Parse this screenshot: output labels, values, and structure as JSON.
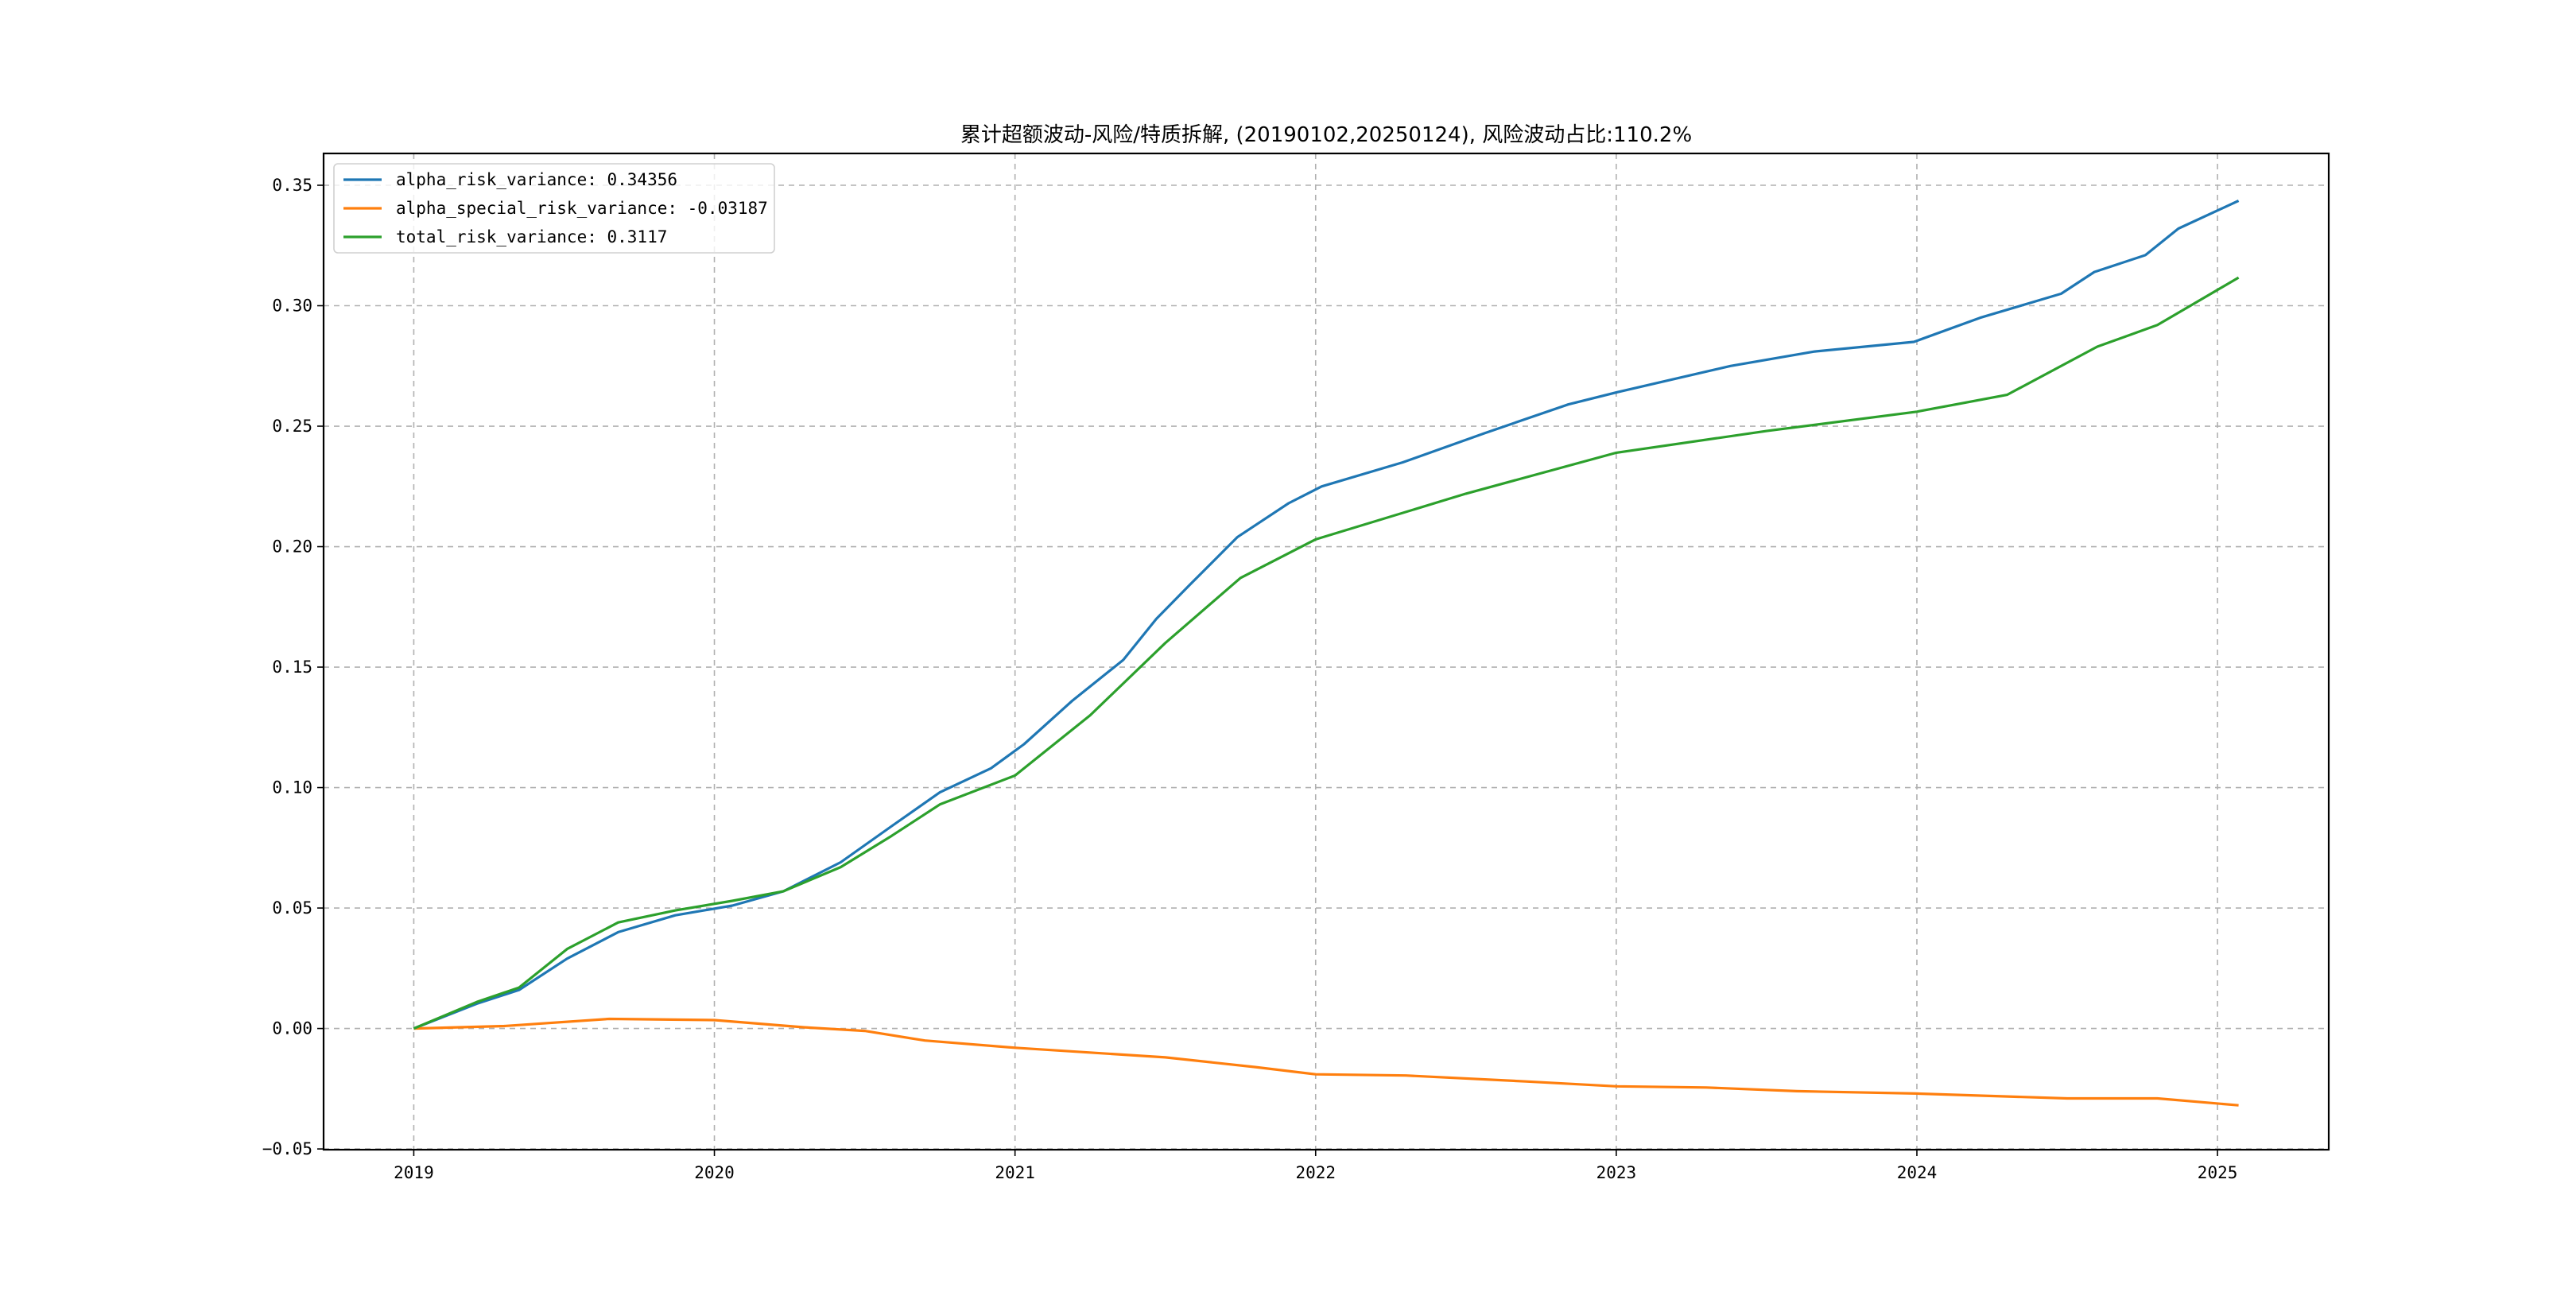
{
  "chart_data": {
    "type": "line",
    "title": "累计超额波动-风险/特质拆解, (20190102,20250124), 风险波动占比:110.2%",
    "xlabel": "",
    "ylabel": "",
    "xlim": [
      2018.7,
      2025.37
    ],
    "ylim": [
      -0.0503,
      0.3632
    ],
    "grid": true,
    "legend_position": "top-left",
    "x_ticks": [
      2019,
      2020,
      2021,
      2022,
      2023,
      2024,
      2025
    ],
    "x_tick_labels": [
      "2019",
      "2020",
      "2021",
      "2022",
      "2023",
      "2024",
      "2025"
    ],
    "y_ticks": [
      -0.05,
      0.0,
      0.05,
      0.1,
      0.15,
      0.2,
      0.25,
      0.3,
      0.35
    ],
    "y_tick_labels": [
      "−0.05",
      "0.00",
      "0.05",
      "0.10",
      "0.15",
      "0.20",
      "0.25",
      "0.30",
      "0.35"
    ],
    "series": [
      {
        "name": "alpha_risk_variance",
        "legend": "alpha_risk_variance: 0.34356",
        "color": "#1f77b4",
        "x": [
          2019.0,
          2019.21,
          2019.35,
          2019.51,
          2019.68,
          2019.87,
          2020.06,
          2020.23,
          2020.42,
          2020.59,
          2020.75,
          2020.92,
          2021.03,
          2021.19,
          2021.36,
          2021.47,
          2021.58,
          2021.74,
          2021.91,
          2022.02,
          2022.29,
          2022.56,
          2022.84,
          2023.0,
          2023.38,
          2023.66,
          2023.99,
          2024.21,
          2024.48,
          2024.59,
          2024.76,
          2024.87,
          2025.07
        ],
        "y": [
          0.0,
          0.0103,
          0.016,
          0.029,
          0.04,
          0.047,
          0.051,
          0.057,
          0.069,
          0.084,
          0.098,
          0.108,
          0.118,
          0.136,
          0.153,
          0.17,
          0.184,
          0.204,
          0.218,
          0.225,
          0.235,
          0.247,
          0.259,
          0.264,
          0.275,
          0.281,
          0.285,
          0.295,
          0.305,
          0.314,
          0.321,
          0.332,
          0.34356
        ]
      },
      {
        "name": "alpha_special_risk_variance",
        "legend": "alpha_special_risk_variance: -0.03187",
        "color": "#ff7f0e",
        "x": [
          2019.0,
          2019.3,
          2019.65,
          2020.0,
          2020.3,
          2020.5,
          2020.7,
          2021.0,
          2021.5,
          2021.8,
          2022.0,
          2022.3,
          2022.7,
          2023.0,
          2023.3,
          2023.6,
          2024.0,
          2024.5,
          2024.8,
          2025.07
        ],
        "y": [
          0.0,
          0.001,
          0.004,
          0.0035,
          0.0005,
          -0.001,
          -0.005,
          -0.008,
          -0.012,
          -0.016,
          -0.019,
          -0.0195,
          -0.022,
          -0.024,
          -0.0245,
          -0.026,
          -0.027,
          -0.029,
          -0.029,
          -0.03187
        ]
      },
      {
        "name": "total_risk_variance",
        "legend": "total_risk_variance: 0.3117",
        "color": "#2ca02c",
        "x": [
          2019.0,
          2019.21,
          2019.35,
          2019.51,
          2019.68,
          2019.87,
          2020.06,
          2020.23,
          2020.42,
          2020.59,
          2020.75,
          2021.0,
          2021.25,
          2021.5,
          2021.75,
          2022.0,
          2022.5,
          2023.0,
          2023.5,
          2024.0,
          2024.3,
          2024.6,
          2024.8,
          2025.07
        ],
        "y": [
          0.0,
          0.011,
          0.017,
          0.033,
          0.044,
          0.049,
          0.053,
          0.057,
          0.067,
          0.08,
          0.093,
          0.105,
          0.13,
          0.16,
          0.187,
          0.203,
          0.222,
          0.239,
          0.248,
          0.256,
          0.263,
          0.283,
          0.292,
          0.3117
        ]
      }
    ]
  }
}
